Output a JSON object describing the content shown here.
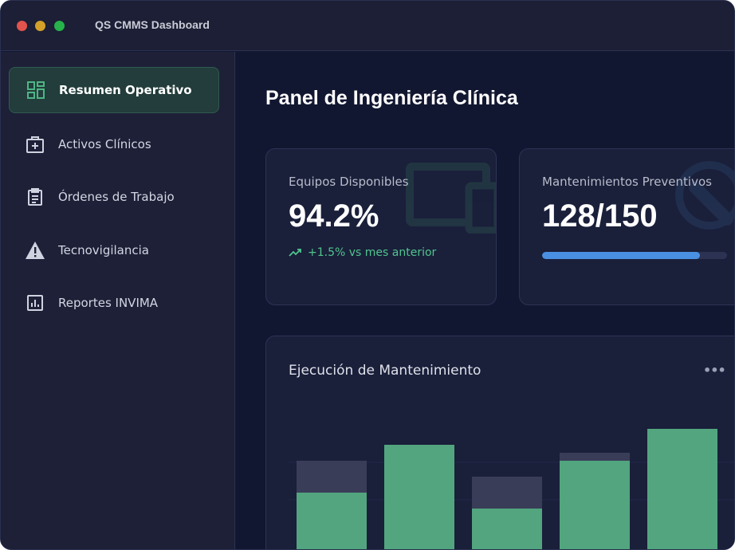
{
  "window": {
    "title": "QS CMMS Dashboard"
  },
  "sidebar": {
    "items": [
      {
        "label": "Resumen Operativo",
        "icon": "dashboard-icon",
        "active": true
      },
      {
        "label": "Activos Clínicos",
        "icon": "medical-kit-icon",
        "active": false
      },
      {
        "label": "Órdenes de Trabajo",
        "icon": "clipboard-icon",
        "active": false
      },
      {
        "label": "Tecnovigilancia",
        "icon": "warning-icon",
        "active": false
      },
      {
        "label": "Reportes INVIMA",
        "icon": "report-chart-icon",
        "active": false
      }
    ]
  },
  "main": {
    "title": "Panel de Ingeniería Clínica",
    "cards": [
      {
        "label": "Equipos Disponibles",
        "value": "94.2%",
        "trend": "+1.5% vs mes anterior",
        "icon": "devices-icon"
      },
      {
        "label": "Mantenimientos Preventivos",
        "value": "128/150",
        "progress": 0.853,
        "icon": "wrench-icon"
      }
    ],
    "chart": {
      "title": "Ejecución de Mantenimiento",
      "more_icon": "more-dots-icon"
    }
  },
  "colors": {
    "accent_green": "#4fa87f",
    "progress_blue": "#4a90e2",
    "bar_planned": "#3a3d58",
    "bar_executed": "#52a57e"
  },
  "chart_data": {
    "type": "bar",
    "series": [
      {
        "values": [
          72,
          82,
          62,
          77,
          87
        ]
      },
      {
        "values": [
          52,
          82,
          42,
          72,
          92
        ]
      }
    ]
  }
}
